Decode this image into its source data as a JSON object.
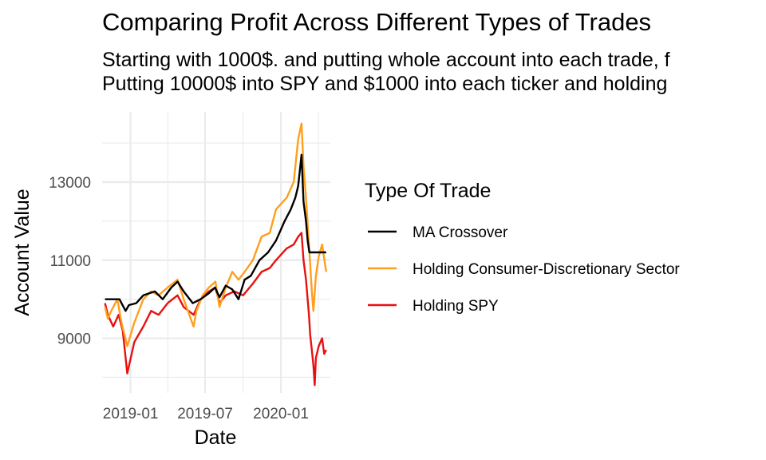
{
  "chart_data": {
    "type": "line",
    "title": "Comparing Profit Across Different Types of Trades",
    "subtitle_lines": [
      "Starting with 1000$. and putting whole account into each trade, f",
      "Putting 10000$ into SPY and $1000 into each ticker and holding"
    ],
    "xlabel": "Date",
    "ylabel": "Account Value",
    "x_ticks": [
      "2019-01",
      "2019-07",
      "2020-01"
    ],
    "y_ticks": [
      9000,
      11000,
      13000
    ],
    "ylim": [
      7600,
      14800
    ],
    "xlim": [
      "2018-10-24",
      "2020-04-30"
    ],
    "grid": true,
    "legend": {
      "title": "Type Of Trade",
      "position": "right"
    },
    "series": [
      {
        "name": "MA Crossover",
        "color": "#000000",
        "points": [
          [
            "2018-10-31",
            10000
          ],
          [
            "2018-12-05",
            10000
          ],
          [
            "2018-12-20",
            9700
          ],
          [
            "2018-12-28",
            9850
          ],
          [
            "2019-01-15",
            9900
          ],
          [
            "2019-02-01",
            10100
          ],
          [
            "2019-03-01",
            10200
          ],
          [
            "2019-03-20",
            10000
          ],
          [
            "2019-04-10",
            10300
          ],
          [
            "2019-04-25",
            10450
          ],
          [
            "2019-05-10",
            10200
          ],
          [
            "2019-06-01",
            9900
          ],
          [
            "2019-06-20",
            10000
          ],
          [
            "2019-07-10",
            10150
          ],
          [
            "2019-07-25",
            10300
          ],
          [
            "2019-08-05",
            10050
          ],
          [
            "2019-08-20",
            10350
          ],
          [
            "2019-09-05",
            10250
          ],
          [
            "2019-09-20",
            10000
          ],
          [
            "2019-10-05",
            10500
          ],
          [
            "2019-10-20",
            10600
          ],
          [
            "2019-11-10",
            11000
          ],
          [
            "2019-12-01",
            11200
          ],
          [
            "2019-12-20",
            11500
          ],
          [
            "2020-01-10",
            12000
          ],
          [
            "2020-01-25",
            12300
          ],
          [
            "2020-02-05",
            12600
          ],
          [
            "2020-02-12",
            12900
          ],
          [
            "2020-02-20",
            13700
          ],
          [
            "2020-02-25",
            12500
          ],
          [
            "2020-03-02",
            12000
          ],
          [
            "2020-03-06",
            11500
          ],
          [
            "2020-03-10",
            11200
          ],
          [
            "2020-03-15",
            11200
          ],
          [
            "2020-03-20",
            11200
          ],
          [
            "2020-03-31",
            11200
          ],
          [
            "2020-04-10",
            11200
          ],
          [
            "2020-04-20",
            11200
          ]
        ]
      },
      {
        "name": "Holding Consumer-Discretionary Sector",
        "color": "#ff9f1c",
        "points": [
          [
            "2018-10-31",
            9800
          ],
          [
            "2018-11-07",
            9500
          ],
          [
            "2018-11-15",
            9700
          ],
          [
            "2018-11-30",
            10000
          ],
          [
            "2018-12-10",
            9400
          ],
          [
            "2018-12-24",
            8800
          ],
          [
            "2019-01-10",
            9400
          ],
          [
            "2019-02-01",
            10000
          ],
          [
            "2019-02-20",
            10200
          ],
          [
            "2019-03-10",
            10100
          ],
          [
            "2019-04-01",
            10300
          ],
          [
            "2019-04-25",
            10500
          ],
          [
            "2019-05-10",
            10000
          ],
          [
            "2019-06-03",
            9300
          ],
          [
            "2019-06-10",
            9700
          ],
          [
            "2019-06-25",
            10100
          ],
          [
            "2019-07-10",
            10300
          ],
          [
            "2019-07-26",
            10450
          ],
          [
            "2019-08-05",
            9800
          ],
          [
            "2019-08-20",
            10300
          ],
          [
            "2019-09-05",
            10700
          ],
          [
            "2019-09-20",
            10500
          ],
          [
            "2019-10-05",
            10700
          ],
          [
            "2019-10-25",
            11000
          ],
          [
            "2019-11-15",
            11600
          ],
          [
            "2019-12-05",
            11700
          ],
          [
            "2019-12-20",
            12300
          ],
          [
            "2020-01-15",
            12600
          ],
          [
            "2020-02-01",
            13000
          ],
          [
            "2020-02-12",
            14100
          ],
          [
            "2020-02-20",
            14500
          ],
          [
            "2020-02-25",
            13400
          ],
          [
            "2020-03-02",
            12600
          ],
          [
            "2020-03-09",
            11400
          ],
          [
            "2020-03-16",
            10200
          ],
          [
            "2020-03-20",
            9700
          ],
          [
            "2020-03-26",
            10600
          ],
          [
            "2020-04-02",
            11100
          ],
          [
            "2020-04-10",
            11400
          ],
          [
            "2020-04-20",
            10700
          ]
        ]
      },
      {
        "name": "Holding SPY",
        "color": "#e81010",
        "points": [
          [
            "2018-10-31",
            9900
          ],
          [
            "2018-11-07",
            9600
          ],
          [
            "2018-11-20",
            9300
          ],
          [
            "2018-12-03",
            9600
          ],
          [
            "2018-12-13",
            9200
          ],
          [
            "2018-12-24",
            8100
          ],
          [
            "2019-01-10",
            8900
          ],
          [
            "2019-02-01",
            9300
          ],
          [
            "2019-02-20",
            9700
          ],
          [
            "2019-03-10",
            9600
          ],
          [
            "2019-04-01",
            9900
          ],
          [
            "2019-04-25",
            10100
          ],
          [
            "2019-05-10",
            9800
          ],
          [
            "2019-06-03",
            9600
          ],
          [
            "2019-06-20",
            10000
          ],
          [
            "2019-07-10",
            10200
          ],
          [
            "2019-07-26",
            10300
          ],
          [
            "2019-08-05",
            9900
          ],
          [
            "2019-08-20",
            10100
          ],
          [
            "2019-09-10",
            10200
          ],
          [
            "2019-10-01",
            10100
          ],
          [
            "2019-10-25",
            10400
          ],
          [
            "2019-11-15",
            10700
          ],
          [
            "2019-12-05",
            10800
          ],
          [
            "2019-12-20",
            11000
          ],
          [
            "2020-01-15",
            11300
          ],
          [
            "2020-02-01",
            11400
          ],
          [
            "2020-02-12",
            11600
          ],
          [
            "2020-02-20",
            11700
          ],
          [
            "2020-02-25",
            11000
          ],
          [
            "2020-03-02",
            10500
          ],
          [
            "2020-03-09",
            9600
          ],
          [
            "2020-03-12",
            9100
          ],
          [
            "2020-03-16",
            8700
          ],
          [
            "2020-03-20",
            8300
          ],
          [
            "2020-03-23",
            7800
          ],
          [
            "2020-03-26",
            8500
          ],
          [
            "2020-04-02",
            8800
          ],
          [
            "2020-04-10",
            9000
          ],
          [
            "2020-04-15",
            8600
          ],
          [
            "2020-04-20",
            8700
          ]
        ]
      }
    ]
  }
}
